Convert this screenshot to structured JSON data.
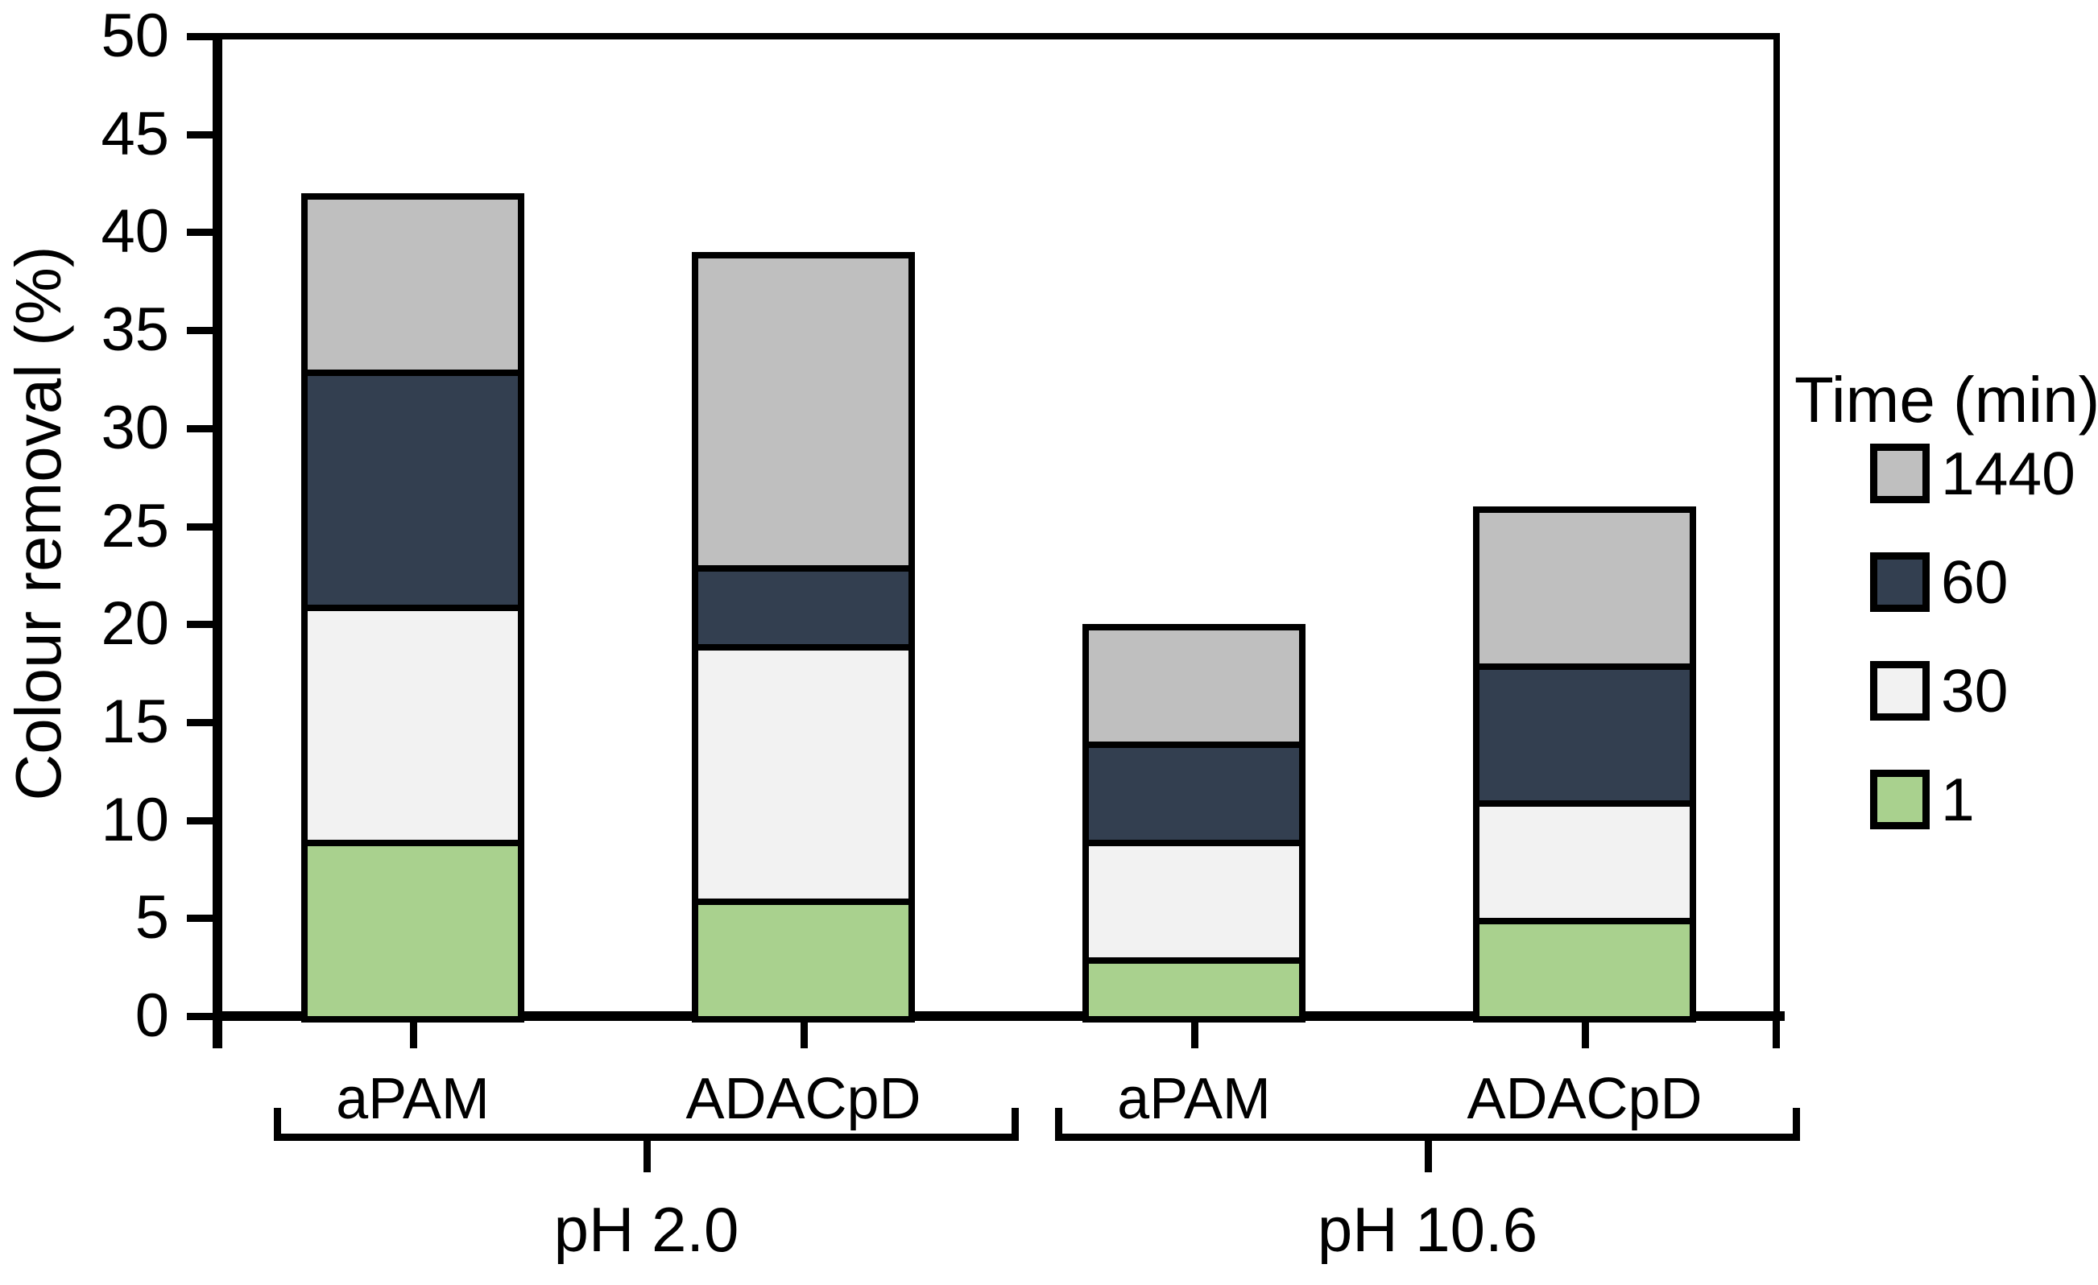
{
  "chart_data": {
    "type": "bar",
    "stacked": true,
    "title": "",
    "ylabel": "Colour removal (%)",
    "xlabel": "",
    "ylim": [
      0,
      50
    ],
    "ytick_step": 5,
    "ytick_labels": [
      "0",
      "5",
      "10",
      "15",
      "20",
      "25",
      "30",
      "35",
      "40",
      "45",
      "50"
    ],
    "grid": false,
    "categories": [
      "aPAM",
      "ADACpD",
      "aPAM",
      "ADACpD"
    ],
    "groups": [
      {
        "label": "pH 2.0",
        "category_indexes": [
          0,
          1
        ]
      },
      {
        "label": "pH 10.6",
        "category_indexes": [
          2,
          3
        ]
      }
    ],
    "series_bottom_to_top": [
      {
        "name": "1",
        "color": "#a9d18e",
        "values": [
          9,
          6,
          3,
          5
        ]
      },
      {
        "name": "30",
        "color": "#f2f2f2",
        "values": [
          12,
          13,
          6,
          6
        ]
      },
      {
        "name": "60",
        "color": "#333f50",
        "values": [
          12,
          4,
          5,
          7
        ]
      },
      {
        "name": "1440",
        "color": "#bfbfbf",
        "values": [
          9,
          16,
          6,
          8
        ]
      }
    ],
    "stack_totals": [
      42,
      39,
      20,
      26
    ],
    "legend": {
      "title": "Time (min)",
      "position": "right",
      "entries_top_to_bottom": [
        "1440",
        "60",
        "30",
        "1"
      ]
    },
    "axis_color": "#000000",
    "bar_border_color": "#000000",
    "background_color": "#ffffff"
  }
}
